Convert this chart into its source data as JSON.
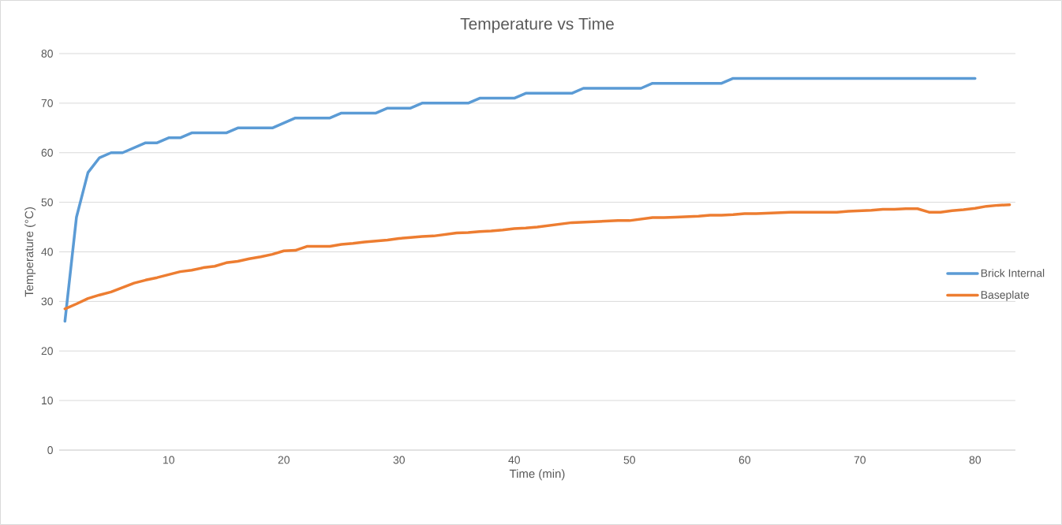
{
  "chart_data": {
    "type": "line",
    "title": "Temperature vs Time",
    "xlabel": "Time (min)",
    "ylabel": "Temperature (°C)",
    "x": [
      1,
      2,
      3,
      4,
      5,
      6,
      7,
      8,
      9,
      10,
      11,
      12,
      13,
      14,
      15,
      16,
      17,
      18,
      19,
      20,
      21,
      22,
      23,
      24,
      25,
      26,
      27,
      28,
      29,
      30,
      31,
      32,
      33,
      34,
      35,
      36,
      37,
      38,
      39,
      40,
      41,
      42,
      43,
      44,
      45,
      46,
      47,
      48,
      49,
      50,
      51,
      52,
      53,
      54,
      55,
      56,
      57,
      58,
      59,
      60,
      61,
      62,
      63,
      64,
      65,
      66,
      67,
      68,
      69,
      70,
      71,
      72,
      73,
      74,
      75,
      76,
      77,
      78,
      79,
      80,
      81,
      82,
      83
    ],
    "xlim": [
      0.5,
      83.5
    ],
    "xticks": [
      10,
      20,
      30,
      40,
      50,
      60,
      70,
      80
    ],
    "ylim": [
      0,
      80
    ],
    "yticks": [
      0,
      10,
      20,
      30,
      40,
      50,
      60,
      70,
      80
    ],
    "grid": "y",
    "legend": "right",
    "marker": "none",
    "line_style": "solid",
    "series": [
      {
        "name": "Brick Internal",
        "color": "#5b9bd5",
        "values": [
          26,
          47,
          56,
          59,
          60,
          60,
          61,
          62,
          62,
          63,
          63,
          64,
          64,
          64,
          64,
          65,
          65,
          65,
          65,
          66,
          67,
          67,
          67,
          67,
          68,
          68,
          68,
          68,
          69,
          69,
          69,
          70,
          70,
          70,
          70,
          70,
          71,
          71,
          71,
          71,
          72,
          72,
          72,
          72,
          72,
          73,
          73,
          73,
          73,
          73,
          73,
          74,
          74,
          74,
          74,
          74,
          74,
          74,
          75,
          75,
          75,
          75,
          75,
          75,
          75,
          75,
          75,
          75,
          75,
          75,
          75,
          75,
          75,
          75,
          75,
          75,
          75,
          75,
          75,
          75,
          null,
          null,
          null
        ]
      },
      {
        "name": "Baseplate",
        "color": "#ed7d31",
        "values": [
          28.5,
          29.5,
          30.6,
          31.3,
          31.9,
          32.8,
          33.7,
          34.3,
          34.8,
          35.4,
          36.0,
          36.3,
          36.8,
          37.1,
          37.8,
          38.1,
          38.6,
          39.0,
          39.5,
          40.2,
          40.3,
          41.1,
          41.1,
          41.1,
          41.5,
          41.7,
          42.0,
          42.2,
          42.4,
          42.7,
          42.9,
          43.1,
          43.2,
          43.5,
          43.8,
          43.9,
          44.1,
          44.2,
          44.4,
          44.7,
          44.8,
          45.0,
          45.3,
          45.6,
          45.9,
          46.0,
          46.1,
          46.2,
          46.3,
          46.3,
          46.6,
          46.9,
          46.9,
          47.0,
          47.1,
          47.2,
          47.4,
          47.4,
          47.5,
          47.7,
          47.7,
          47.8,
          47.9,
          48.0,
          48.0,
          48.0,
          48.0,
          48.0,
          48.2,
          48.3,
          48.4,
          48.6,
          48.6,
          48.7,
          48.7,
          48.0,
          48.0,
          48.3,
          48.5,
          48.8,
          49.2,
          49.4,
          49.5
        ]
      }
    ]
  }
}
